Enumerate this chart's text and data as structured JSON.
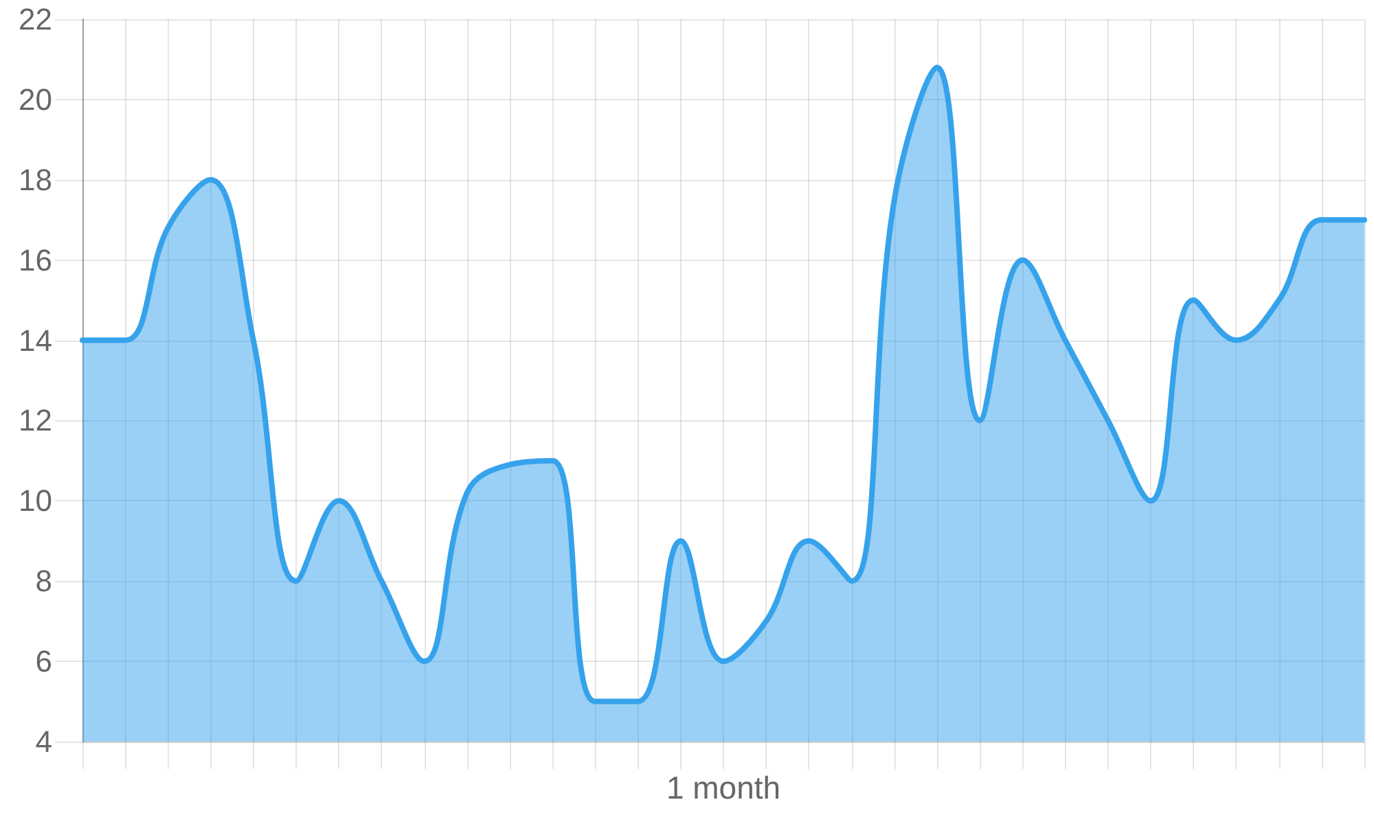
{
  "chart_data": {
    "type": "area",
    "xlabel": "1 month",
    "categories": [
      null,
      null,
      null,
      null,
      null,
      null,
      null,
      null,
      null,
      null,
      null,
      null,
      null,
      null,
      null,
      null,
      null,
      null,
      null,
      null,
      null,
      null,
      null,
      null,
      null,
      null,
      null,
      null,
      null,
      null,
      null
    ],
    "values": [
      14,
      14,
      16.8,
      18,
      14,
      8,
      10,
      8,
      6,
      10.2,
      10.9,
      11,
      5,
      5,
      9,
      6,
      7,
      9,
      8,
      17.5,
      20.8,
      12,
      16,
      14,
      12,
      10,
      15,
      14,
      15,
      17,
      17
    ],
    "color": "#36a2eb",
    "ylim": [
      4,
      22
    ],
    "yticks": [
      4,
      6,
      8,
      10,
      12,
      14,
      16,
      18,
      20,
      22
    ],
    "grid": true,
    "marker": "none",
    "tick_labels": "y"
  }
}
